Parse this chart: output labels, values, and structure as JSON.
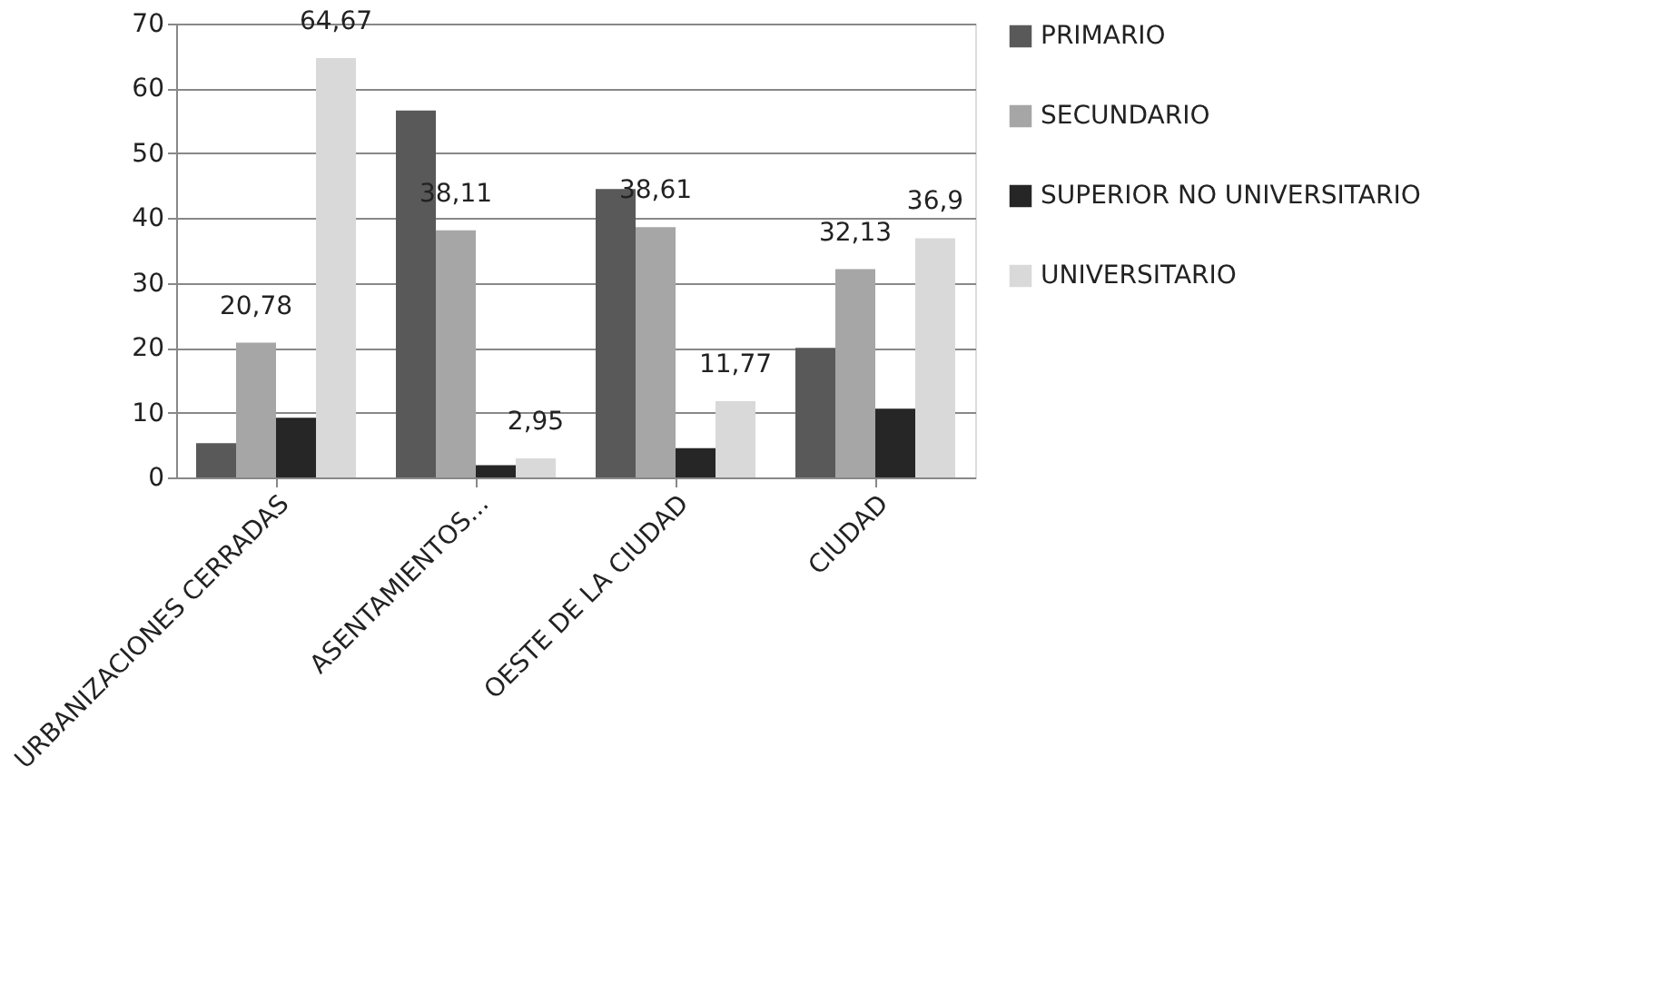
{
  "chart_data": {
    "type": "bar",
    "categories": [
      "URBANIZACIONES CERRADAS",
      "ASENTAMIENTOS...",
      "OESTE DE LA CIUDAD",
      "CIUDAD"
    ],
    "series": [
      {
        "name": "PRIMARIO",
        "color": "#595959",
        "values": [
          5.3,
          56.6,
          44.5,
          20
        ]
      },
      {
        "name": "SECUNDARIO",
        "color": "#a6a6a6",
        "values": [
          20.78,
          38.11,
          38.61,
          32.13
        ],
        "value_labels": [
          "20,78",
          "38,11",
          "38,61",
          "32,13"
        ]
      },
      {
        "name": "SUPERIOR NO UNIVERSITARIO",
        "color": "#262626",
        "values": [
          9.2,
          1.9,
          4.5,
          10.6
        ]
      },
      {
        "name": "UNIVERSITARIO",
        "color": "#d9d9d9",
        "values": [
          64.67,
          2.95,
          11.77,
          36.9
        ],
        "value_labels": [
          "64,67",
          "2,95",
          "11,77",
          "36,9"
        ]
      }
    ],
    "ylim": [
      0,
      70
    ],
    "yticks": [
      0,
      10,
      20,
      30,
      40,
      50,
      60,
      70
    ],
    "grid": "y",
    "legend": "right"
  }
}
